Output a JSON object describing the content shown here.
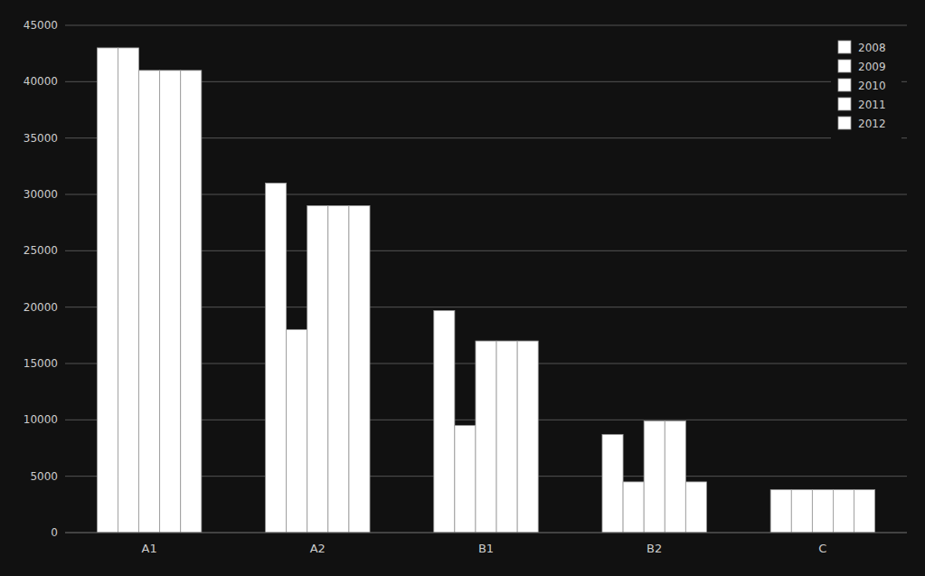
{
  "chart_data": {
    "type": "bar",
    "categories": [
      "A1",
      "A2",
      "B1",
      "B2",
      "C"
    ],
    "series": [
      {
        "name": "2008",
        "color": "#ffffff",
        "values": [
          43000,
          31000,
          19700,
          8700,
          3800
        ]
      },
      {
        "name": "2009",
        "color": "#ffffff",
        "values": [
          43000,
          18000,
          9500,
          4500,
          3800
        ]
      },
      {
        "name": "2010",
        "color": "#ffffff",
        "values": [
          41000,
          29000,
          17000,
          9900,
          3800
        ]
      },
      {
        "name": "2011",
        "color": "#ffffff",
        "values": [
          41000,
          29000,
          17000,
          9900,
          3800
        ]
      },
      {
        "name": "2012",
        "color": "#ffffff",
        "values": [
          41000,
          29000,
          17000,
          4500,
          3800
        ]
      }
    ],
    "ylim": [
      0,
      45000
    ],
    "yticks": [
      0,
      5000,
      10000,
      15000,
      20000,
      25000,
      30000,
      35000,
      40000,
      45000
    ],
    "grid": true,
    "legend": "upper right"
  }
}
